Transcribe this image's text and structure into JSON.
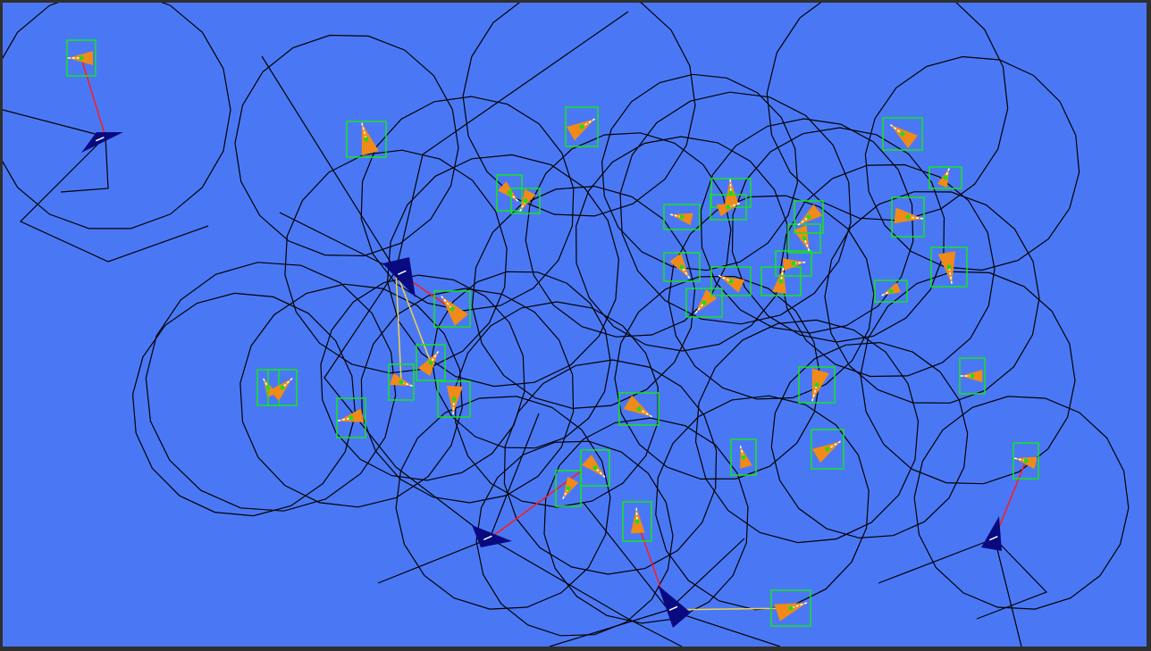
{
  "colors": {
    "background": "#4a78f5",
    "frame": "#2f2f2f",
    "sensor_circle": "#000000",
    "predator_body": "#0a0a80",
    "prey_body": "#f08a18",
    "prey_box": "#14e61e",
    "prey_center": "#1edc1e",
    "target_line": "#ff1a1a",
    "secondary_line": "#f0d24a"
  },
  "icons": {
    "predator": "navy-triangle-agent",
    "prey": "orange-wedge-agent-in-green-box"
  }
}
